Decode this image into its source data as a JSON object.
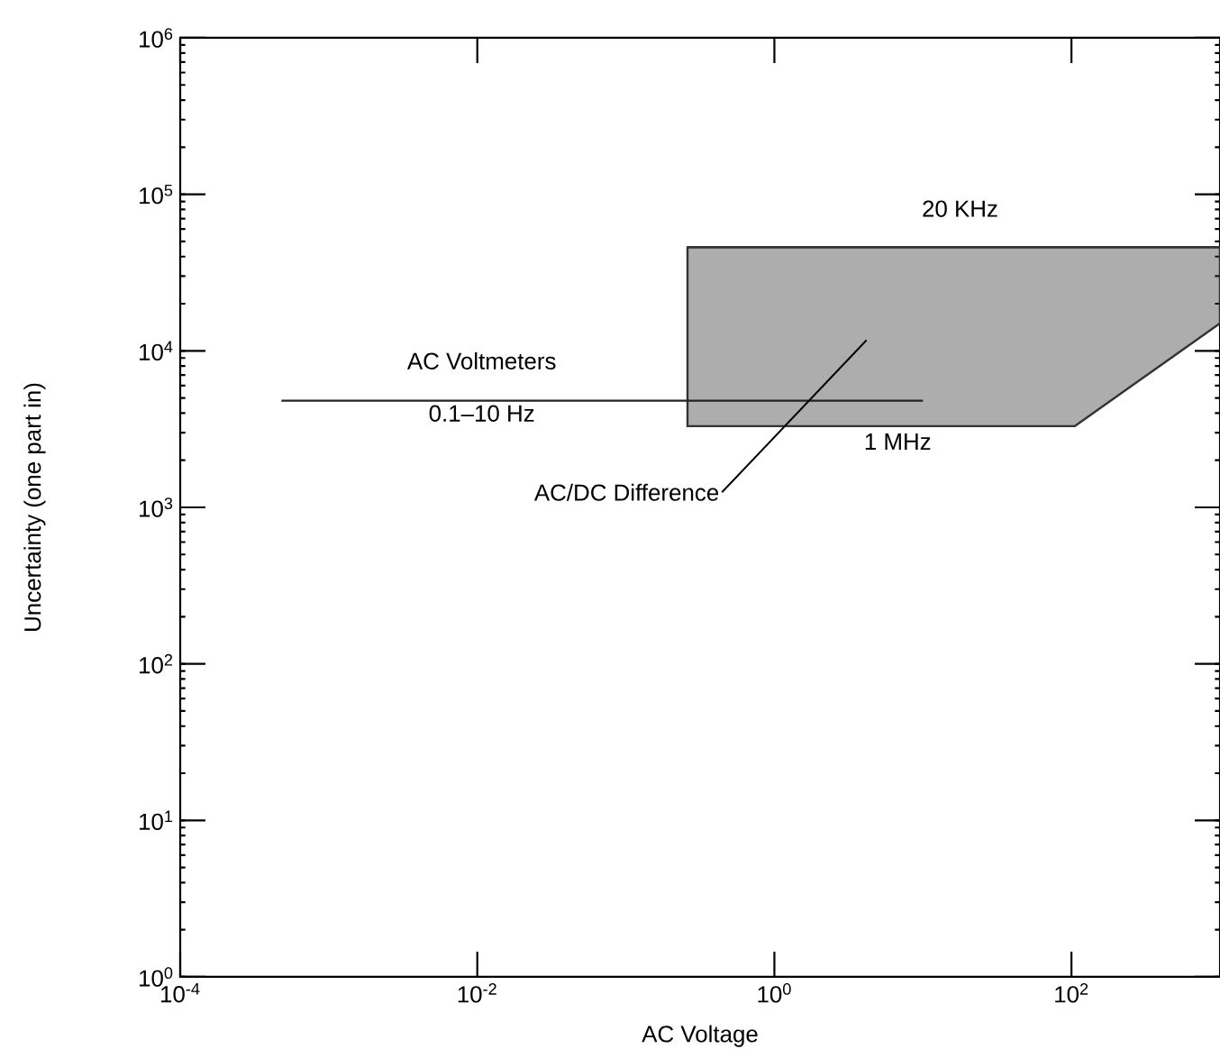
{
  "chart_data": {
    "type": "line",
    "xlabel": "AC Voltage",
    "ylabel": "Uncertainty (one part in)",
    "log": "xy",
    "xlim": [
      0.0001,
      1000
    ],
    "ylim": [
      1,
      1000000
    ],
    "xticks": [
      {
        "value": 0.0001,
        "label": "10$^{-4}$"
      },
      {
        "value": 0.01,
        "label": "10$^{-2}$"
      },
      {
        "value": 1,
        "label": "10$^{0}$"
      },
      {
        "value": 100,
        "label": "10$^{2}$"
      }
    ],
    "yticks": [
      {
        "value": 1,
        "label": "10$^{0}$"
      },
      {
        "value": 10,
        "label": "10$^{1}$"
      },
      {
        "value": 100,
        "label": "10$^{2}$"
      },
      {
        "value": 1000,
        "label": "10$^{3}$"
      },
      {
        "value": 10000,
        "label": "10$^{4}$"
      },
      {
        "value": 100000,
        "label": "10$^{5}$"
      },
      {
        "value": 1000000,
        "label": "10$^{6}$"
      }
    ],
    "series": [
      {
        "color": "#333333",
        "x": [
          0.26,
          105,
          1000
        ],
        "values": [
          46000,
          46000,
          46000
        ],
        "lower": [
          3300,
          3300,
          15000
        ],
        "upper": [
          46000,
          46000,
          46000
        ]
      },
      {
        "color": "#222222",
        "x": [
          0.00048,
          10
        ],
        "values": [
          4800,
          4800
        ]
      }
    ],
    "annotations": [
      "20 KHz",
      "1 MHz",
      "AC Voltmeters",
      "0.1–10 Hz",
      "AC/DC Difference"
    ]
  }
}
